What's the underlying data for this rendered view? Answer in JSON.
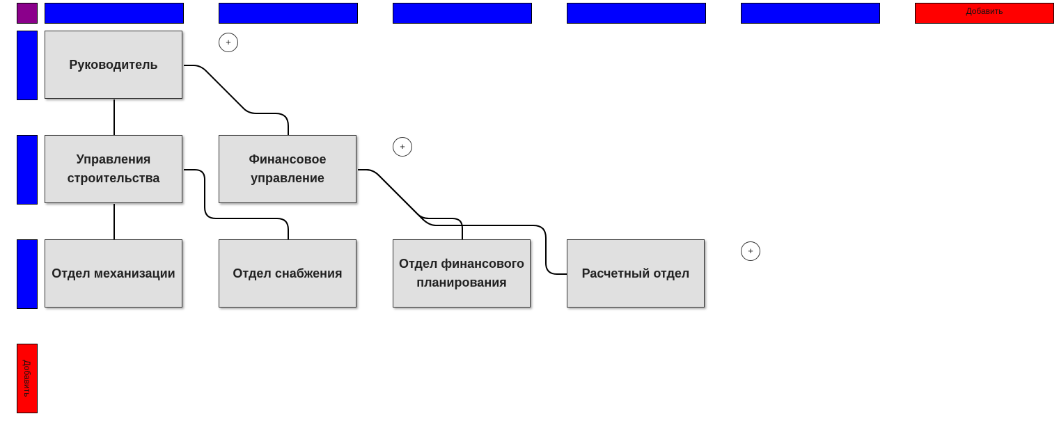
{
  "add_column_label": "Добавить",
  "add_row_label": "Добавить",
  "plus_symbol": "+",
  "nodes": {
    "head": "Руководитель",
    "construction": "Управления строительства",
    "finance": "Финансовое управление",
    "mechanization": "Отдел механизации",
    "supply": "Отдел снабжения",
    "financial_planning": "Отдел финансового планирования",
    "settlement": "Расчетный отдел"
  },
  "colors": {
    "header": "#0000ff",
    "corner": "#8b008b",
    "add": "#ff0000",
    "node": "#e0e0e0"
  }
}
